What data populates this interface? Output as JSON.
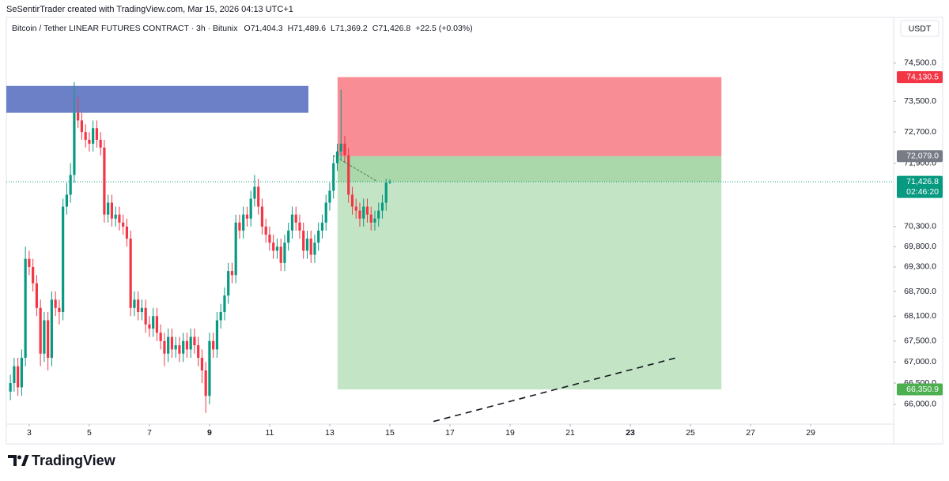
{
  "header": {
    "attribution": "SeSentirTrader created with TradingView.com, Mar 15, 2026 04:13 UTC+1",
    "brand": "TradingView"
  },
  "chart_data": {
    "type": "candlestick",
    "symbol": "Bitcoin / Tether LINEAR FUTURES CONTRACT · 3h · Bitunix",
    "ohlc_legend": [
      "O71,404.3",
      "H71,489.6",
      "L71,369.2",
      "C71,426.8",
      "+22.5 (+0.03%)"
    ],
    "currency": "USDT",
    "x": [
      2.375,
      2.5,
      2.625,
      2.75,
      2.875,
      3,
      3.125,
      3.25,
      3.375,
      3.5,
      3.625,
      3.75,
      3.875,
      4,
      4.125,
      4.25,
      4.375,
      4.5,
      4.625,
      4.75,
      4.875,
      5,
      5.125,
      5.25,
      5.375,
      5.5,
      5.625,
      5.75,
      5.875,
      6,
      6.125,
      6.25,
      6.375,
      6.5,
      6.625,
      6.75,
      6.875,
      7,
      7.125,
      7.25,
      7.375,
      7.5,
      7.625,
      7.75,
      7.875,
      8,
      8.125,
      8.25,
      8.375,
      8.5,
      8.625,
      8.75,
      8.875,
      9,
      9.125,
      9.25,
      9.375,
      9.5,
      9.625,
      9.75,
      9.875,
      10,
      10.125,
      10.25,
      10.375,
      10.5,
      10.625,
      10.75,
      10.875,
      11,
      11.125,
      11.25,
      11.375,
      11.5,
      11.625,
      11.75,
      11.875,
      12,
      12.125,
      12.25,
      12.375,
      12.5,
      12.625,
      12.75,
      12.875,
      13,
      13.125,
      13.25,
      13.375,
      13.5,
      13.625,
      13.75,
      13.875,
      14,
      14.125,
      14.25,
      14.375,
      14.5,
      14.625,
      14.75,
      14.875,
      15
    ],
    "open": [
      66300,
      66500,
      66900,
      66400,
      67100,
      69500,
      69300,
      68900,
      68300,
      67200,
      68000,
      67100,
      68500,
      68300,
      68200,
      70800,
      71100,
      71600,
      73200,
      73000,
      72700,
      72500,
      72400,
      72800,
      72500,
      72300,
      70600,
      70900,
      70500,
      70600,
      70400,
      70300,
      70000,
      68300,
      68500,
      68200,
      68300,
      67900,
      67800,
      68100,
      67700,
      67500,
      67200,
      67600,
      67300,
      67400,
      67200,
      67500,
      67300,
      67600,
      67400,
      67100,
      66800,
      66200,
      67500,
      67300,
      68000,
      68200,
      68600,
      69200,
      69100,
      70400,
      70200,
      70600,
      70500,
      71000,
      71300,
      70800,
      70300,
      70100,
      69900,
      69700,
      69800,
      69400,
      69900,
      70200,
      70600,
      70400,
      70200,
      69700,
      70000,
      69600,
      69900,
      70200,
      70400,
      70900,
      71200,
      71900,
      72200,
      72400,
      72100,
      71100,
      70800,
      70700,
      70500,
      70800,
      70600,
      70400,
      70500,
      70700,
      70900,
      71404.3
    ],
    "high": [
      66700,
      67100,
      67100,
      67300,
      69800,
      69700,
      69500,
      69100,
      68500,
      68200,
      68200,
      68700,
      68700,
      68500,
      71000,
      71400,
      71900,
      74000,
      73600,
      73200,
      72900,
      72700,
      73000,
      73000,
      72700,
      72500,
      71100,
      71100,
      70800,
      70800,
      70600,
      70500,
      70200,
      68700,
      68700,
      68500,
      68500,
      68100,
      68300,
      68300,
      67900,
      67700,
      67800,
      67800,
      67600,
      67600,
      67700,
      67700,
      67800,
      67800,
      67600,
      67300,
      67000,
      67700,
      67700,
      68200,
      68400,
      68800,
      69400,
      69400,
      70600,
      70600,
      70800,
      70800,
      71200,
      71600,
      71500,
      71000,
      70500,
      70300,
      70100,
      70000,
      70000,
      70100,
      70400,
      70800,
      70800,
      70600,
      70400,
      70200,
      70200,
      70100,
      70400,
      70600,
      71100,
      71400,
      72100,
      72400,
      73800,
      72600,
      72300,
      71300,
      71000,
      70900,
      71000,
      71000,
      70800,
      70700,
      70900,
      71100,
      71500,
      71489.6
    ],
    "low": [
      66100,
      66300,
      66200,
      66200,
      66900,
      69100,
      68700,
      68100,
      66900,
      67000,
      66800,
      66900,
      68100,
      67900,
      68000,
      70600,
      70900,
      71400,
      72800,
      72500,
      72300,
      72200,
      72200,
      72300,
      72100,
      70400,
      70400,
      70300,
      70300,
      70200,
      70100,
      69800,
      68100,
      68100,
      68000,
      68000,
      67700,
      67600,
      67600,
      67500,
      67300,
      66900,
      67000,
      67100,
      67100,
      67000,
      67000,
      67100,
      67100,
      67200,
      66900,
      66500,
      65800,
      66000,
      67100,
      67100,
      67800,
      68000,
      68400,
      68900,
      68900,
      70000,
      70000,
      70300,
      70300,
      70800,
      70600,
      70100,
      69900,
      69700,
      69500,
      69500,
      69200,
      69200,
      69700,
      70000,
      70200,
      70000,
      69500,
      69500,
      69400,
      69400,
      69700,
      70000,
      70200,
      70700,
      71000,
      71700,
      72000,
      71900,
      70900,
      70600,
      70500,
      70300,
      70300,
      70400,
      70200,
      70200,
      70300,
      70500,
      70700,
      71369.2
    ],
    "close": [
      66500,
      66900,
      66400,
      67100,
      69500,
      69300,
      68900,
      68300,
      67200,
      68000,
      67100,
      68500,
      68300,
      68200,
      70800,
      71100,
      71600,
      73200,
      73000,
      72700,
      72500,
      72400,
      72800,
      72500,
      72300,
      70600,
      70900,
      70500,
      70600,
      70400,
      70300,
      70000,
      68300,
      68500,
      68200,
      68300,
      67900,
      67800,
      68100,
      67700,
      67500,
      67200,
      67600,
      67300,
      67400,
      67200,
      67500,
      67300,
      67600,
      67400,
      67100,
      66800,
      66200,
      67500,
      67300,
      68000,
      68200,
      68600,
      69200,
      69100,
      70400,
      70200,
      70600,
      70500,
      71000,
      71300,
      70800,
      70300,
      70100,
      69900,
      69700,
      69800,
      69400,
      69900,
      70200,
      70600,
      70400,
      70200,
      69700,
      70000,
      69600,
      69900,
      70200,
      70400,
      70900,
      71200,
      71900,
      72200,
      72400,
      72100,
      71100,
      70800,
      70700,
      70500,
      70800,
      70600,
      70400,
      70500,
      70700,
      70900,
      71404.3,
      71426.8
    ],
    "up_color": "#089981",
    "down_color": "#f23645",
    "xlim": [
      2.24,
      31.76
    ],
    "xticks": [
      3,
      5,
      7,
      9,
      11,
      13,
      15,
      17,
      19,
      21,
      23,
      25,
      27,
      29
    ],
    "bold_xticks": [
      9,
      23
    ],
    "ylim": [
      65575,
      75720
    ],
    "log_scale": true,
    "yticks": [
      {
        "value": 74500,
        "label": "74,500.0"
      },
      {
        "value": 73500,
        "label": "73,500.0"
      },
      {
        "value": 72700,
        "label": "72,700.0"
      },
      {
        "value": 71900,
        "label": "71,900.0"
      },
      {
        "value": 70300,
        "label": "70,300.0"
      },
      {
        "value": 69800,
        "label": "69,800.0"
      },
      {
        "value": 69300,
        "label": "69,300.0"
      },
      {
        "value": 68700,
        "label": "68,700.0"
      },
      {
        "value": 68100,
        "label": "68,100.0"
      },
      {
        "value": 67500,
        "label": "67,500.0"
      },
      {
        "value": 67000,
        "label": "67,000.0"
      },
      {
        "value": 66500,
        "label": "66,500.0"
      },
      {
        "value": 66000,
        "label": "66,000.0"
      }
    ],
    "zone": {
      "x": [
        2.24,
        12.29
      ],
      "y": [
        73200,
        73900
      ],
      "color": "#6379c4"
    },
    "position": {
      "x": [
        13.26,
        26.03
      ],
      "stop": {
        "value": 74130.5,
        "label": "74,130.5"
      },
      "entry": {
        "value": 72079,
        "label": "72,079.0"
      },
      "target": {
        "value": 66350.9,
        "label": "66,350.9"
      },
      "current": {
        "value": 71426.8,
        "label": "71,426.8"
      },
      "countdown": "02:46:20"
    },
    "trend_line": {
      "x": [
        16.45,
        24.53
      ],
      "y": [
        65600,
        67100
      ]
    },
    "projection": {
      "x": [
        13.11,
        14.55
      ],
      "y": [
        72100,
        71450
      ]
    }
  }
}
